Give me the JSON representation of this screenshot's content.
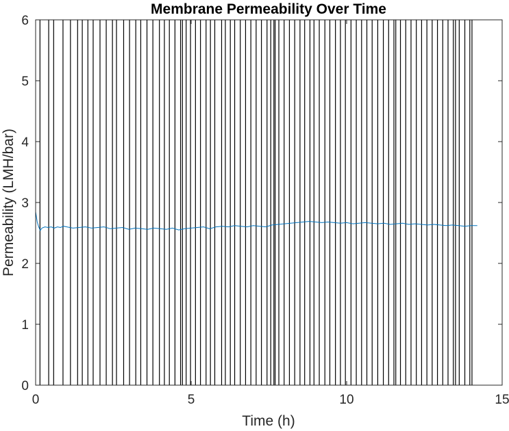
{
  "chart_data": {
    "type": "line",
    "title": "Membrane Permeability Over Time",
    "xlabel": "Time (h)",
    "ylabel": "Permeability (LMH/bar)",
    "xlim": [
      0,
      15
    ],
    "ylim": [
      0,
      6
    ],
    "xticks": [
      0,
      5,
      10,
      15
    ],
    "yticks": [
      0,
      1,
      2,
      3,
      4,
      5,
      6
    ],
    "grid": false,
    "colors": {
      "series": "#0072BD",
      "vlines": "#000000",
      "axes": "#262626"
    },
    "series": [
      {
        "x": [
          0.0,
          0.05,
          0.1,
          0.15,
          0.2,
          0.3,
          0.4,
          0.5,
          0.6,
          0.7,
          0.8,
          0.9,
          1.0,
          1.2,
          1.4,
          1.6,
          1.8,
          2.0,
          2.2,
          2.4,
          2.6,
          2.8,
          3.0,
          3.2,
          3.4,
          3.6,
          3.8,
          4.0,
          4.2,
          4.4,
          4.6,
          4.8,
          5.0,
          5.2,
          5.4,
          5.6,
          5.8,
          6.0,
          6.2,
          6.4,
          6.6,
          6.8,
          7.0,
          7.2,
          7.4,
          7.6,
          7.8,
          8.0,
          8.2,
          8.4,
          8.6,
          8.8,
          9.0,
          9.2,
          9.4,
          9.6,
          9.8,
          10.0,
          10.2,
          10.4,
          10.6,
          10.8,
          11.0,
          11.2,
          11.4,
          11.6,
          11.8,
          12.0,
          12.2,
          12.4,
          12.6,
          12.8,
          13.0,
          13.2,
          13.4,
          13.6,
          13.8,
          14.0,
          14.2
        ],
        "y": [
          2.85,
          2.68,
          2.6,
          2.54,
          2.58,
          2.6,
          2.59,
          2.6,
          2.58,
          2.6,
          2.59,
          2.61,
          2.6,
          2.58,
          2.59,
          2.6,
          2.58,
          2.59,
          2.6,
          2.57,
          2.58,
          2.59,
          2.56,
          2.58,
          2.57,
          2.56,
          2.58,
          2.57,
          2.56,
          2.58,
          2.55,
          2.57,
          2.58,
          2.59,
          2.6,
          2.57,
          2.6,
          2.61,
          2.6,
          2.62,
          2.61,
          2.6,
          2.62,
          2.61,
          2.6,
          2.63,
          2.64,
          2.65,
          2.66,
          2.67,
          2.68,
          2.69,
          2.68,
          2.67,
          2.68,
          2.67,
          2.66,
          2.67,
          2.65,
          2.66,
          2.67,
          2.66,
          2.65,
          2.66,
          2.64,
          2.65,
          2.66,
          2.64,
          2.65,
          2.64,
          2.63,
          2.64,
          2.63,
          2.62,
          2.63,
          2.62,
          2.61,
          2.62,
          2.62
        ]
      }
    ],
    "vlines": [
      0.14,
      0.42,
      0.58,
      0.88,
      1.12,
      1.35,
      1.5,
      1.68,
      1.85,
      2.07,
      2.27,
      2.47,
      2.6,
      2.83,
      3.02,
      3.22,
      3.38,
      3.58,
      3.77,
      3.98,
      4.14,
      4.3,
      4.48,
      4.66,
      4.72,
      4.84,
      4.98,
      5.14,
      5.3,
      5.48,
      5.62,
      5.76,
      5.98,
      6.1,
      6.26,
      6.4,
      6.58,
      6.75,
      6.92,
      7.09,
      7.26,
      7.44,
      7.56,
      7.66,
      7.7,
      7.82,
      7.99,
      8.16,
      8.33,
      8.5,
      8.65,
      8.82,
      8.95,
      9.12,
      9.3,
      9.46,
      9.64,
      9.8,
      9.96,
      10.14,
      10.31,
      10.48,
      10.65,
      10.82,
      11.0,
      11.18,
      11.35,
      11.52,
      11.58,
      11.73,
      11.9,
      12.07,
      12.24,
      12.41,
      12.58,
      12.75,
      12.92,
      13.09,
      13.26,
      13.43,
      13.5,
      13.62,
      13.8,
      13.96,
      14.03
    ]
  }
}
